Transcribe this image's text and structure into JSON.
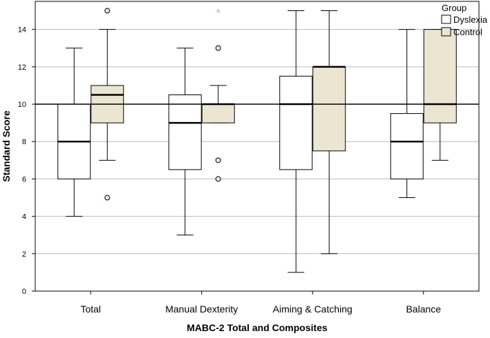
{
  "chart_data": {
    "type": "boxplot",
    "xlabel": "MABC-2 Total and Composites",
    "ylabel": "Standard Score",
    "ylim": [
      0,
      15.5
    ],
    "yticks": [
      0,
      2,
      4,
      6,
      8,
      10,
      12,
      14
    ],
    "reference_line": 10,
    "categories": [
      "Total",
      "Manual Dexterity",
      "Aiming & Catching",
      "Balance"
    ],
    "legend": {
      "title": "Group",
      "position": "top-right",
      "entries": [
        "Dyslexia",
        "Control"
      ]
    },
    "series": [
      {
        "name": "Dyslexia",
        "color": "#ffffff",
        "boxes": [
          {
            "whisker_low": 4,
            "q1": 6,
            "median": 8,
            "q3": 10,
            "whisker_high": 13,
            "outliers": []
          },
          {
            "whisker_low": 3,
            "q1": 6.5,
            "median": 9,
            "q3": 10.5,
            "whisker_high": 13,
            "outliers": []
          },
          {
            "whisker_low": 1,
            "q1": 6.5,
            "median": 10,
            "q3": 11.5,
            "whisker_high": 15,
            "outliers": []
          },
          {
            "whisker_low": 5,
            "q1": 6,
            "median": 8,
            "q3": 9.5,
            "whisker_high": 14,
            "outliers": []
          }
        ]
      },
      {
        "name": "Control",
        "color": "#ece5d2",
        "boxes": [
          {
            "whisker_low": 7,
            "q1": 9,
            "median": 10.5,
            "q3": 11,
            "whisker_high": 14,
            "outliers": [
              5,
              15
            ]
          },
          {
            "whisker_low": 9,
            "q1": 9,
            "median": 10,
            "q3": 10,
            "whisker_high": 11,
            "outliers": [
              6,
              7,
              13
            ],
            "extremes": [
              15
            ]
          },
          {
            "whisker_low": 2,
            "q1": 7.5,
            "median": 12,
            "q3": 12,
            "whisker_high": 15,
            "outliers": []
          },
          {
            "whisker_low": 7,
            "q1": 9,
            "median": 10,
            "q3": 14,
            "whisker_high": 14,
            "outliers": []
          }
        ]
      }
    ]
  }
}
